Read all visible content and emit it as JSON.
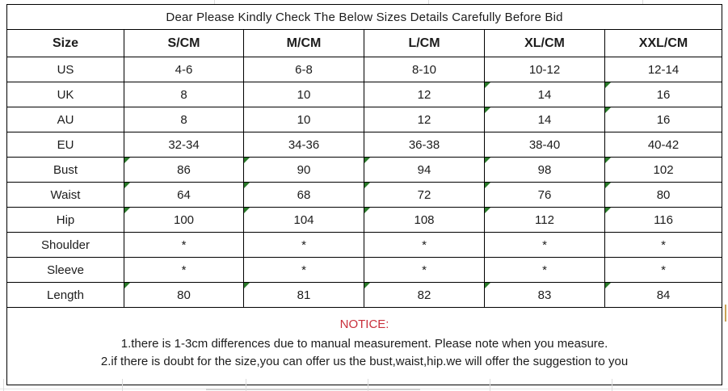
{
  "title": "Dear Please Kindly Check The Below Sizes Details Carefully Before Bid",
  "table": {
    "columns": [
      "Size",
      "S/CM",
      "M/CM",
      "L/CM",
      "XL/CM",
      "XXL/CM"
    ],
    "rows": [
      {
        "label": "US",
        "values": [
          "4-6",
          "6-8",
          "8-10",
          "10-12",
          "12-14"
        ],
        "flags": [
          false,
          false,
          false,
          false,
          false
        ]
      },
      {
        "label": "UK",
        "values": [
          "8",
          "10",
          "12",
          "14",
          "16"
        ],
        "flags": [
          false,
          false,
          false,
          true,
          true
        ]
      },
      {
        "label": "AU",
        "values": [
          "8",
          "10",
          "12",
          "14",
          "16"
        ],
        "flags": [
          false,
          false,
          false,
          true,
          true
        ]
      },
      {
        "label": "EU",
        "values": [
          "32-34",
          "34-36",
          "36-38",
          "38-40",
          "40-42"
        ],
        "flags": [
          false,
          false,
          false,
          false,
          false
        ]
      },
      {
        "label": "Bust",
        "values": [
          "86",
          "90",
          "94",
          "98",
          "102"
        ],
        "flags": [
          true,
          true,
          true,
          true,
          true
        ]
      },
      {
        "label": "Waist",
        "values": [
          "64",
          "68",
          "72",
          "76",
          "80"
        ],
        "flags": [
          true,
          true,
          true,
          true,
          true
        ]
      },
      {
        "label": "Hip",
        "values": [
          "100",
          "104",
          "108",
          "112",
          "116"
        ],
        "flags": [
          true,
          true,
          true,
          true,
          true
        ]
      },
      {
        "label": "Shoulder",
        "values": [
          "*",
          "*",
          "*",
          "*",
          "*"
        ],
        "flags": [
          false,
          false,
          false,
          false,
          false
        ]
      },
      {
        "label": "Sleeve",
        "values": [
          "*",
          "*",
          "*",
          "*",
          "*"
        ],
        "flags": [
          false,
          false,
          false,
          false,
          false
        ]
      },
      {
        "label": "Length",
        "values": [
          "80",
          "81",
          "82",
          "83",
          "84"
        ],
        "flags": [
          true,
          true,
          true,
          true,
          true
        ]
      }
    ]
  },
  "notice": {
    "heading": "NOTICE:",
    "lines": [
      "1.there is 1-3cm differences due to manual measurement. Please note when you measure.",
      "2.if there is doubt for the size,you can offer us the bust,waist,hip.we will offer the suggestion to you"
    ]
  },
  "colors": {
    "notice_heading": "#c9303c",
    "flag_triangle": "#2a7a2a",
    "table_border": "#000000",
    "faint_gridline": "#dcdcdc",
    "tan_artifact": "#c9a257"
  }
}
